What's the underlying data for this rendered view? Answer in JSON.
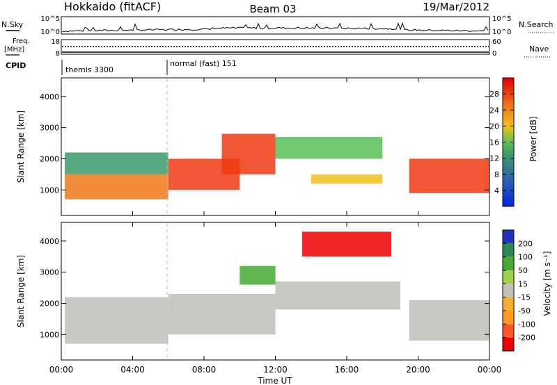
{
  "header": {
    "station": "Hokkaido (fitACF)",
    "beam": "Beam 03",
    "date": "19/Mar/2012"
  },
  "panels": {
    "nsky": {
      "label": "N.Sky",
      "right_label": "N.Search",
      "left_ticks": [
        "10^5",
        "10^0"
      ],
      "right_ticks": [
        "10^5",
        "10^0"
      ]
    },
    "freq": {
      "label_top": "Freq.",
      "label_bottom": "[MHz]",
      "right_label": "Nave",
      "left_ticks": [
        "18",
        "8"
      ],
      "right_ticks": [
        "60",
        "0"
      ]
    },
    "cpid": {
      "label": "CPID",
      "modes": [
        {
          "name": "themis 3300",
          "start_hour": 0
        },
        {
          "name": "normal (fast) 151",
          "start_hour": 6
        }
      ]
    }
  },
  "colors": {
    "power": [
      "#0022dd",
      "#2255cc",
      "#3a9a6a",
      "#55c055",
      "#f0c020",
      "#f07818",
      "#ee3a10",
      "#dd0000"
    ],
    "velocity": [
      "#ee0000",
      "#ff5522",
      "#ff9922",
      "#f2b030",
      "#c0c0b8",
      "#9bd24a",
      "#44aa33",
      "#2a8855",
      "#2233bb"
    ]
  },
  "chart_data": [
    {
      "type": "heatmap",
      "name": "power",
      "ylabel": "Slant Range [km]",
      "ylim": [
        180,
        4600
      ],
      "yticks": [
        "1000",
        "2000",
        "3000",
        "4000"
      ],
      "xlim": [
        0,
        24
      ],
      "colorbar": {
        "title": "Power [dB]",
        "ticks": [
          "4",
          "8",
          "12",
          "16",
          "20",
          "24",
          "28"
        ],
        "range": [
          0,
          32
        ]
      },
      "regions": [
        {
          "x": [
            0.2,
            6
          ],
          "y": [
            700,
            1500
          ],
          "level": 5
        },
        {
          "x": [
            0.2,
            6
          ],
          "y": [
            1500,
            2200
          ],
          "level": 2
        },
        {
          "x": [
            6,
            10
          ],
          "y": [
            1000,
            2000
          ],
          "level": 6
        },
        {
          "x": [
            9,
            12
          ],
          "y": [
            1500,
            2800
          ],
          "level": 6
        },
        {
          "x": [
            12,
            18
          ],
          "y": [
            2000,
            2700
          ],
          "level": 3
        },
        {
          "x": [
            14,
            18
          ],
          "y": [
            1200,
            1500
          ],
          "level": 4
        },
        {
          "x": [
            19.5,
            24
          ],
          "y": [
            900,
            2000
          ],
          "level": 6
        }
      ]
    },
    {
      "type": "heatmap",
      "name": "velocity",
      "ylabel": "Slant Range [km]",
      "ylim": [
        180,
        4600
      ],
      "yticks": [
        "1000",
        "2000",
        "3000",
        "4000"
      ],
      "xlabel": "Time UT",
      "xlim": [
        0,
        24
      ],
      "xticks": [
        "00:00",
        "04:00",
        "08:00",
        "12:00",
        "16:00",
        "20:00",
        "00:00"
      ],
      "colorbar": {
        "title": "Velocity [m s⁻¹]",
        "ticks": [
          "200",
          "100",
          "50",
          "15",
          "-15",
          "-50",
          "-100",
          "-200"
        ]
      },
      "regions": [
        {
          "x": [
            0.2,
            6
          ],
          "y": [
            700,
            2200
          ],
          "level": 0
        },
        {
          "x": [
            6,
            12
          ],
          "y": [
            1000,
            2300
          ],
          "level": 0
        },
        {
          "x": [
            12,
            19
          ],
          "y": [
            1800,
            2700
          ],
          "level": 0
        },
        {
          "x": [
            13.5,
            18.5
          ],
          "y": [
            3500,
            4300
          ],
          "level": -200
        },
        {
          "x": [
            10,
            12
          ],
          "y": [
            2600,
            3200
          ],
          "level": 50
        },
        {
          "x": [
            19.5,
            24
          ],
          "y": [
            800,
            2100
          ],
          "level": 0
        }
      ]
    }
  ]
}
